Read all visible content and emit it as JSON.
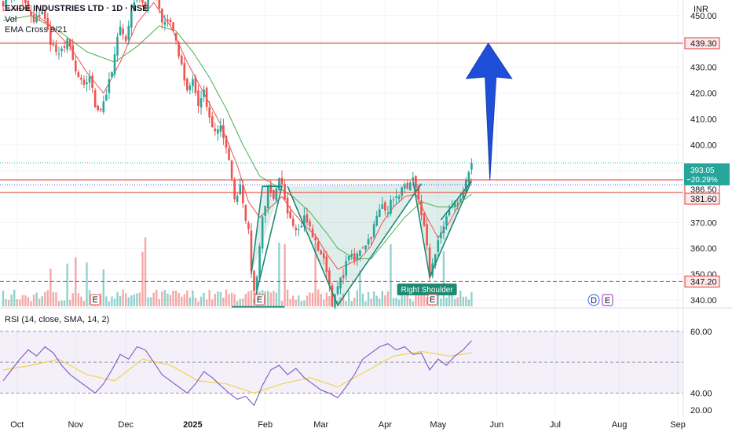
{
  "header": {
    "title": "EXIDE INDUSTRIES LTD · 1D · NSE",
    "vol_label": "Vol",
    "ema_label": "EMA Cross 9/21",
    "currency": "INR",
    "rsi_label": "RSI (14, close, SMA, 14, 2)"
  },
  "colors": {
    "up": "#26a69a",
    "down": "#ef5350",
    "ema_fast": "#ef5350",
    "ema_slow": "#4caf50",
    "level": "#e53935",
    "pattern": "#1e8a72",
    "arrow": "#1f4fd8",
    "rsi": "#7e57c2",
    "rsi_ma": "#f1d44c"
  },
  "chart_data": {
    "type": "candlestick",
    "price_axis": {
      "ticks": [
        "450.00",
        "440.00",
        "430.00",
        "420.00",
        "410.00",
        "400.00",
        "390.00",
        "380.00",
        "370.00",
        "360.00",
        "350.00",
        "340.00"
      ],
      "ylim": [
        337,
        456
      ]
    },
    "x_axis": {
      "labels": [
        "Oct",
        "Nov",
        "Dec",
        "2025",
        "Feb",
        "Mar",
        "Apr",
        "May",
        "Jun",
        "Jul",
        "Aug",
        "Sep"
      ],
      "label_bar": [
        5,
        26,
        44,
        68,
        94,
        114,
        137,
        156,
        177,
        198,
        221,
        242
      ]
    },
    "levels": [
      {
        "value": 439.3,
        "label": "439.30",
        "style": "solid"
      },
      {
        "value": 386.5,
        "label": "386.50",
        "style": "solid"
      },
      {
        "value": 381.6,
        "label": "381.60",
        "style": "solid"
      },
      {
        "value": 347.2,
        "label": "347.20",
        "style": "dashed"
      }
    ],
    "last_price": {
      "value": 393.05,
      "label": "393.05",
      "change": "−20.29%"
    },
    "ohlc_path": [
      [
        0,
        455
      ],
      [
        4,
        460
      ],
      [
        8,
        454
      ],
      [
        11,
        447
      ],
      [
        14,
        452
      ],
      [
        17,
        440
      ],
      [
        20,
        434
      ],
      [
        23,
        441
      ],
      [
        26,
        428
      ],
      [
        29,
        422
      ],
      [
        31,
        427
      ],
      [
        33,
        415
      ],
      [
        35,
        414
      ],
      [
        37,
        420
      ],
      [
        39,
        428
      ],
      [
        42,
        447
      ],
      [
        44,
        440
      ],
      [
        46,
        452
      ],
      [
        48,
        460
      ],
      [
        51,
        453
      ],
      [
        53,
        462
      ],
      [
        55,
        458
      ],
      [
        57,
        448
      ],
      [
        60,
        448
      ],
      [
        62,
        440
      ],
      [
        64,
        430
      ],
      [
        66,
        420
      ],
      [
        68,
        425
      ],
      [
        70,
        415
      ],
      [
        72,
        420
      ],
      [
        74,
        410
      ],
      [
        76,
        405
      ],
      [
        78,
        408
      ],
      [
        80,
        398
      ],
      [
        82,
        388
      ],
      [
        83,
        378
      ],
      [
        85,
        385
      ],
      [
        87,
        372
      ],
      [
        88,
        366
      ],
      [
        89,
        352
      ],
      [
        90,
        343
      ],
      [
        91,
        350
      ],
      [
        93,
        372
      ],
      [
        95,
        383
      ],
      [
        97,
        378
      ],
      [
        99,
        386
      ],
      [
        100,
        384
      ],
      [
        102,
        375
      ],
      [
        104,
        370
      ],
      [
        106,
        367
      ],
      [
        108,
        372
      ],
      [
        110,
        368
      ],
      [
        112,
        362
      ],
      [
        114,
        358
      ],
      [
        116,
        352
      ],
      [
        117,
        346
      ],
      [
        118,
        339
      ],
      [
        119,
        341
      ],
      [
        120,
        345
      ],
      [
        122,
        350
      ],
      [
        124,
        358
      ],
      [
        126,
        355
      ],
      [
        128,
        360
      ],
      [
        130,
        362
      ],
      [
        132,
        365
      ],
      [
        134,
        372
      ],
      [
        136,
        377
      ],
      [
        138,
        375
      ],
      [
        140,
        380
      ],
      [
        142,
        379
      ],
      [
        143,
        385
      ],
      [
        145,
        382
      ],
      [
        147,
        386
      ],
      [
        149,
        379
      ],
      [
        151,
        368
      ],
      [
        152,
        360
      ],
      [
        153,
        349
      ],
      [
        154,
        355
      ],
      [
        155,
        358
      ],
      [
        157,
        366
      ],
      [
        159,
        372
      ],
      [
        161,
        377
      ],
      [
        163,
        378
      ],
      [
        165,
        382
      ],
      [
        167,
        388
      ],
      [
        168,
        393
      ]
    ],
    "ema_fast_points": [
      [
        0,
        452
      ],
      [
        8,
        453
      ],
      [
        16,
        447
      ],
      [
        24,
        438
      ],
      [
        30,
        428
      ],
      [
        36,
        420
      ],
      [
        42,
        432
      ],
      [
        48,
        447
      ],
      [
        54,
        455
      ],
      [
        60,
        446
      ],
      [
        66,
        432
      ],
      [
        72,
        420
      ],
      [
        78,
        408
      ],
      [
        84,
        392
      ],
      [
        88,
        378
      ],
      [
        92,
        372
      ],
      [
        96,
        376
      ],
      [
        100,
        380
      ],
      [
        104,
        374
      ],
      [
        108,
        369
      ],
      [
        112,
        365
      ],
      [
        116,
        358
      ],
      [
        120,
        352
      ],
      [
        124,
        354
      ],
      [
        128,
        356
      ],
      [
        132,
        361
      ],
      [
        136,
        370
      ],
      [
        140,
        376
      ],
      [
        144,
        380
      ],
      [
        148,
        381
      ],
      [
        152,
        372
      ],
      [
        156,
        364
      ],
      [
        160,
        370
      ],
      [
        164,
        378
      ],
      [
        168,
        387
      ]
    ],
    "ema_slow_points": [
      [
        0,
        448
      ],
      [
        10,
        450
      ],
      [
        20,
        444
      ],
      [
        30,
        436
      ],
      [
        40,
        432
      ],
      [
        48,
        438
      ],
      [
        56,
        446
      ],
      [
        62,
        444
      ],
      [
        68,
        436
      ],
      [
        74,
        426
      ],
      [
        80,
        414
      ],
      [
        86,
        400
      ],
      [
        92,
        388
      ],
      [
        98,
        384
      ],
      [
        104,
        380
      ],
      [
        110,
        374
      ],
      [
        116,
        366
      ],
      [
        120,
        360
      ],
      [
        126,
        356
      ],
      [
        132,
        356
      ],
      [
        138,
        364
      ],
      [
        144,
        372
      ],
      [
        150,
        378
      ],
      [
        156,
        376
      ],
      [
        162,
        376
      ],
      [
        168,
        381
      ]
    ],
    "pattern": {
      "left_shoulder": [
        [
          89,
          350
        ],
        [
          93,
          384
        ],
        [
          100,
          384
        ],
        [
          90,
          339
        ]
      ],
      "head": [
        [
          102,
          384
        ],
        [
          120,
          338
        ],
        [
          150,
          385
        ]
      ],
      "right_shoulder": [
        [
          147,
          386
        ],
        [
          153,
          349
        ],
        [
          168,
          386
        ],
        [
          157,
          371
        ]
      ],
      "label": "Right Shoulder",
      "neckline_label_bar": 152
    },
    "earnings_markers": [
      {
        "bar": 33,
        "label": "E"
      },
      {
        "bar": 92,
        "label": "E"
      },
      {
        "bar": 154,
        "label": "E"
      }
    ],
    "dividend_markers": [
      {
        "label": "D"
      },
      {
        "label": "E"
      }
    ],
    "target_arrow": {
      "from": 386.5,
      "to": 439.3,
      "bar": 174
    },
    "rsi": {
      "ticks": [
        "60.00",
        "40.00",
        "20.00"
      ],
      "levels": [
        70,
        50,
        30
      ],
      "ylim": [
        15,
        75
      ],
      "points": [
        [
          0,
          38
        ],
        [
          3,
          45
        ],
        [
          6,
          52
        ],
        [
          9,
          58
        ],
        [
          12,
          54
        ],
        [
          15,
          60
        ],
        [
          18,
          56
        ],
        [
          21,
          48
        ],
        [
          24,
          42
        ],
        [
          27,
          38
        ],
        [
          30,
          34
        ],
        [
          33,
          30
        ],
        [
          36,
          36
        ],
        [
          39,
          45
        ],
        [
          42,
          55
        ],
        [
          45,
          52
        ],
        [
          48,
          60
        ],
        [
          51,
          58
        ],
        [
          54,
          50
        ],
        [
          57,
          42
        ],
        [
          60,
          38
        ],
        [
          63,
          34
        ],
        [
          66,
          30
        ],
        [
          69,
          36
        ],
        [
          72,
          44
        ],
        [
          75,
          40
        ],
        [
          78,
          35
        ],
        [
          81,
          30
        ],
        [
          84,
          26
        ],
        [
          87,
          28
        ],
        [
          90,
          22
        ],
        [
          93,
          35
        ],
        [
          96,
          45
        ],
        [
          99,
          48
        ],
        [
          102,
          42
        ],
        [
          105,
          46
        ],
        [
          108,
          40
        ],
        [
          111,
          36
        ],
        [
          114,
          32
        ],
        [
          117,
          30
        ],
        [
          120,
          27
        ],
        [
          123,
          34
        ],
        [
          126,
          42
        ],
        [
          129,
          52
        ],
        [
          132,
          56
        ],
        [
          135,
          60
        ],
        [
          138,
          62
        ],
        [
          141,
          58
        ],
        [
          144,
          60
        ],
        [
          147,
          55
        ],
        [
          150,
          56
        ],
        [
          153,
          45
        ],
        [
          156,
          52
        ],
        [
          159,
          48
        ],
        [
          162,
          54
        ],
        [
          165,
          58
        ],
        [
          168,
          64
        ]
      ],
      "ma_points": [
        [
          0,
          45
        ],
        [
          10,
          48
        ],
        [
          20,
          52
        ],
        [
          30,
          42
        ],
        [
          40,
          38
        ],
        [
          50,
          52
        ],
        [
          60,
          48
        ],
        [
          70,
          38
        ],
        [
          80,
          36
        ],
        [
          90,
          30
        ],
        [
          100,
          36
        ],
        [
          110,
          40
        ],
        [
          120,
          34
        ],
        [
          130,
          44
        ],
        [
          140,
          54
        ],
        [
          150,
          57
        ],
        [
          160,
          54
        ],
        [
          168,
          56
        ]
      ]
    }
  }
}
